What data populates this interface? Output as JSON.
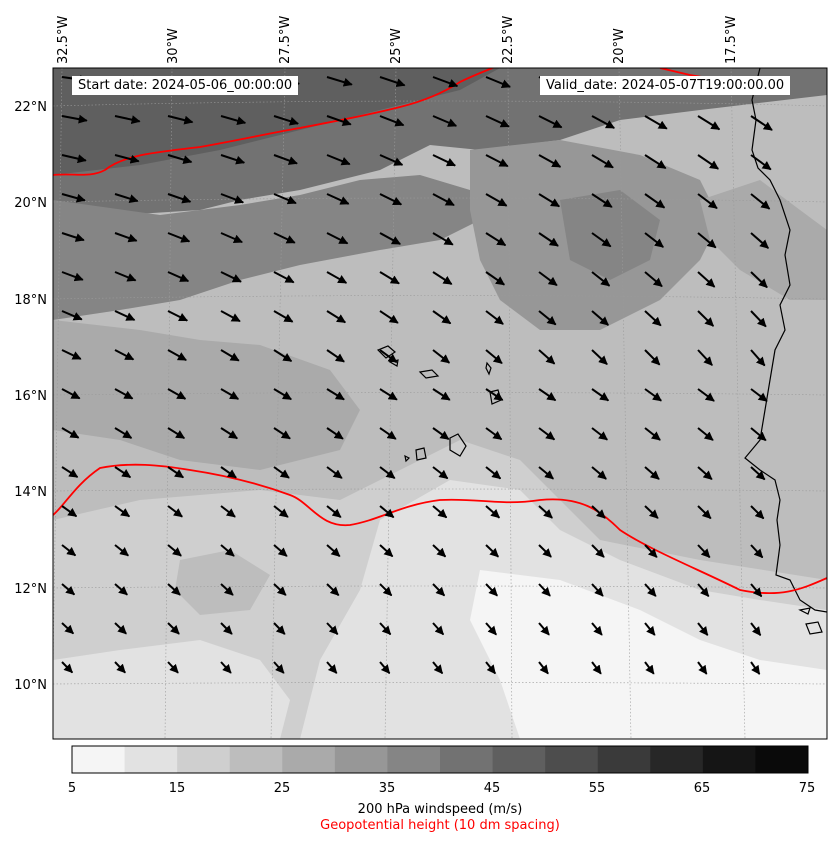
{
  "header": {
    "start_date": "Start date: 2024-05-06_00:00:00",
    "valid_date": "Valid_date: 2024-05-07T19:00:00.00"
  },
  "map": {
    "lon_labels": [
      "32.5°W",
      "30°W",
      "27.5°W",
      "25°W",
      "22.5°W",
      "20°W",
      "17.5°W"
    ],
    "lat_labels": [
      "22°N",
      "20°N",
      "18°N",
      "16°N",
      "14°N",
      "12°N",
      "10°N"
    ],
    "windspeed_colors": [
      "#f5f5f5",
      "#e2e2e2",
      "#cfcfcf",
      "#bdbdbd",
      "#aaaaaa",
      "#979797",
      "#858585",
      "#727272",
      "#5f5f5f",
      "#4d4d4d",
      "#3a3a3a",
      "#272727",
      "#151515",
      "#0a0a0a"
    ],
    "geopotential_color": "#ff0000",
    "grid": true
  },
  "colorbar": {
    "ticks": [
      "5",
      "15",
      "25",
      "35",
      "45",
      "55",
      "65",
      "75"
    ],
    "label": "200 hPa windspeed (m/s)",
    "secondary_label": "Geopotential height (10 dm spacing)"
  }
}
